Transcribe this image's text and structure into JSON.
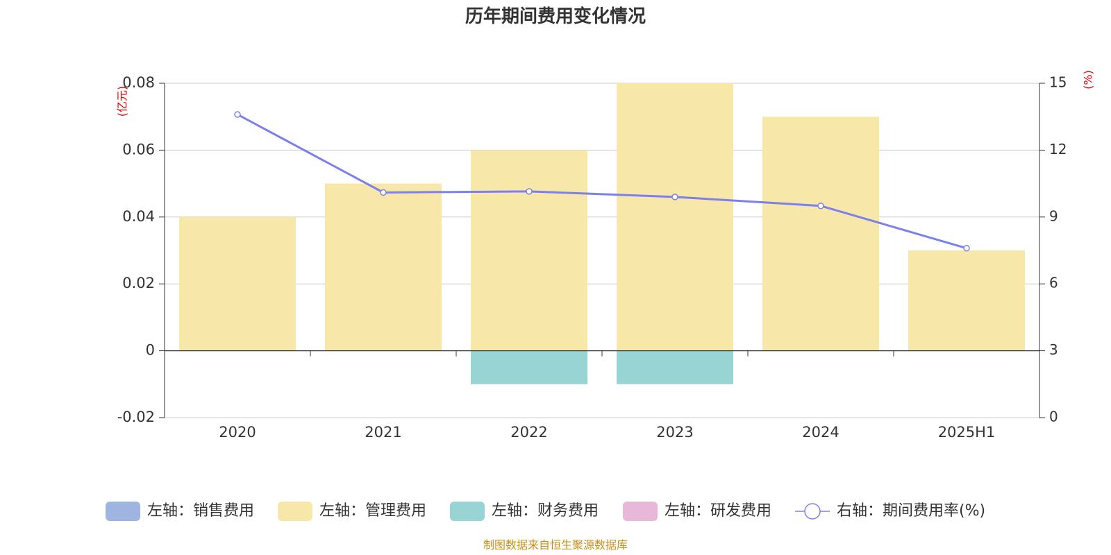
{
  "chart_data": {
    "type": "bar",
    "title": "历年期间费用变化情况",
    "categories": [
      "2020",
      "2021",
      "2022",
      "2023",
      "2024",
      "2025H1"
    ],
    "left_axis": {
      "unit": "(亿元)",
      "ylim": [
        -0.02,
        0.08
      ],
      "ticks": [
        "-0.02",
        "0",
        "0.02",
        "0.04",
        "0.06",
        "0.08"
      ]
    },
    "right_axis": {
      "unit": "(%)",
      "ylim": [
        0,
        15
      ],
      "ticks": [
        "0",
        "3",
        "6",
        "9",
        "12",
        "15"
      ]
    },
    "series": [
      {
        "name": "左轴：销售费用",
        "type": "bar",
        "axis": "left",
        "color": "#9db5e0",
        "values": [
          0,
          0,
          0,
          0,
          0,
          0
        ]
      },
      {
        "name": "左轴：管理费用",
        "type": "bar",
        "axis": "left",
        "color": "#f7e7a8",
        "values": [
          0.04,
          0.05,
          0.06,
          0.08,
          0.07,
          0.03
        ]
      },
      {
        "name": "左轴：财务费用",
        "type": "bar",
        "axis": "left",
        "color": "#99d4d4",
        "values": [
          0,
          0,
          -0.01,
          -0.01,
          0,
          0
        ]
      },
      {
        "name": "左轴：研发费用",
        "type": "bar",
        "axis": "left",
        "color": "#e8b8d8",
        "values": [
          0,
          0,
          0,
          0,
          0,
          0
        ]
      },
      {
        "name": "右轴：期间费用率(%)",
        "type": "line",
        "axis": "right",
        "color": "#7b7ff0",
        "values": [
          13.6,
          10.1,
          10.15,
          9.9,
          9.5,
          7.6
        ]
      }
    ],
    "grid": true,
    "legend_position": "bottom"
  },
  "source_note": "制图数据来自恒生聚源数据库"
}
